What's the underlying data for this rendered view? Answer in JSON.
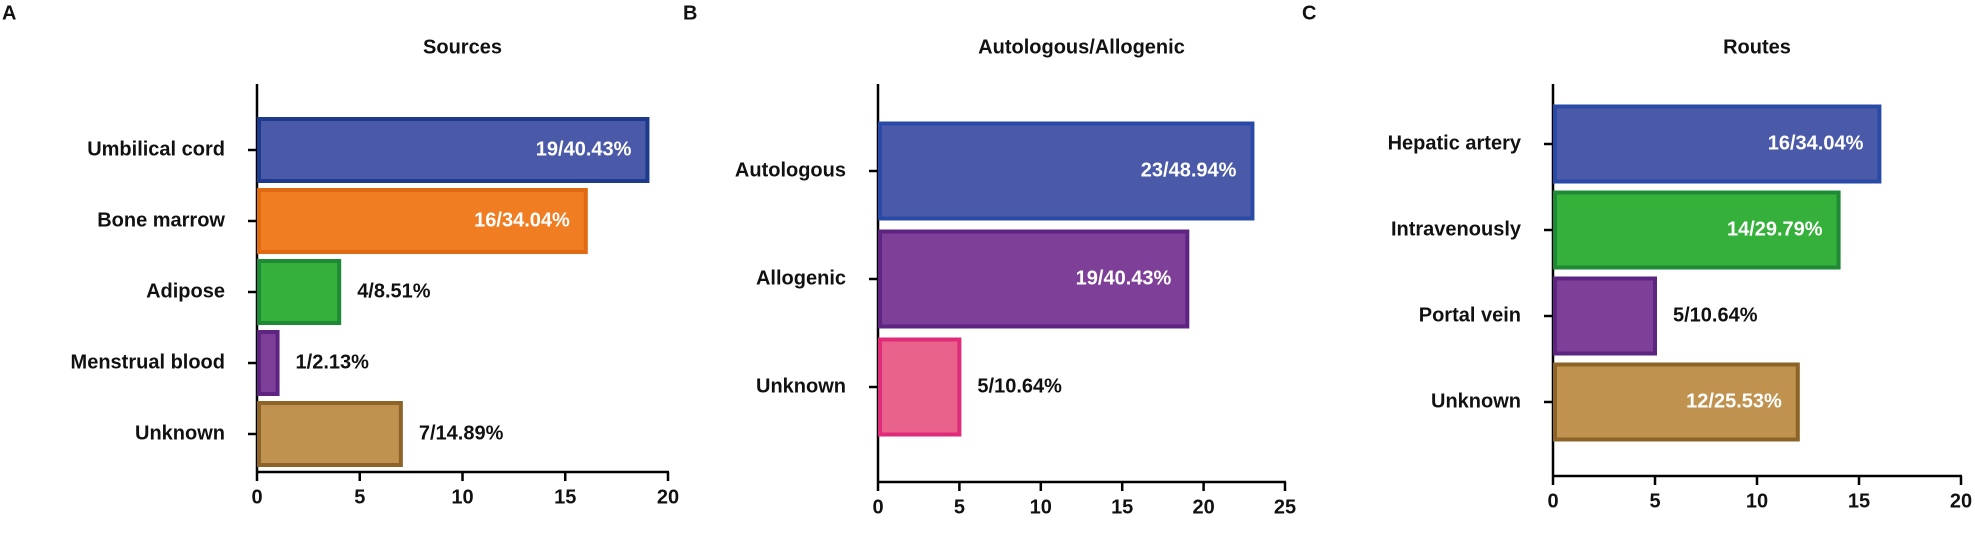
{
  "chart_data": [
    {
      "type": "bar",
      "panel": "A",
      "title": "Sources",
      "orientation": "horizontal",
      "categories": [
        "Umbilical cord",
        "Bone marrow",
        "Adipose",
        "Menstrual blood",
        "Unknown"
      ],
      "values": [
        19,
        16,
        4,
        1,
        7
      ],
      "value_labels": [
        "19/40.43%",
        "16/34.04%",
        "4/8.51%",
        "1/2.13%",
        "7/14.89%"
      ],
      "colors": [
        "#4a5aa8",
        "#f07d22",
        "#35b03a",
        "#7e3f98",
        "#c0924f"
      ],
      "edge_colors": [
        "#1d3a8c",
        "#e06a12",
        "#1e8a35",
        "#5e2482",
        "#8c6428"
      ],
      "xlim": [
        0,
        20
      ],
      "xticks": [
        0,
        5,
        10,
        15,
        20
      ]
    },
    {
      "type": "bar",
      "panel": "B",
      "title": "Autologous/Allogenic",
      "orientation": "horizontal",
      "categories": [
        "Autologous",
        "Allogenic",
        "Unknown"
      ],
      "values": [
        23,
        19,
        5
      ],
      "value_labels": [
        "23/48.94%",
        "19/40.43%",
        "5/10.64%"
      ],
      "colors": [
        "#4a5aa8",
        "#7e3f98",
        "#e8628b"
      ],
      "edge_colors": [
        "#2a4aa8",
        "#5e2482",
        "#e02a7a"
      ],
      "xlim": [
        0,
        25
      ],
      "xticks": [
        0,
        5,
        10,
        15,
        20,
        25
      ]
    },
    {
      "type": "bar",
      "panel": "C",
      "title": "Routes",
      "orientation": "horizontal",
      "categories": [
        "Hepatic artery",
        "Intravenously",
        "Portal vein",
        "Unknown"
      ],
      "values": [
        16,
        14,
        5,
        12
      ],
      "value_labels": [
        "16/34.04%",
        "14/29.79%",
        "5/10.64%",
        "12/25.53%"
      ],
      "colors": [
        "#4a5aa8",
        "#35b03a",
        "#7e3f98",
        "#c0924f"
      ],
      "edge_colors": [
        "#2a4aa8",
        "#1e8a35",
        "#5e2482",
        "#8c6428"
      ],
      "xlim": [
        0,
        20
      ],
      "xticks": [
        0,
        5,
        10,
        15,
        20
      ]
    }
  ]
}
